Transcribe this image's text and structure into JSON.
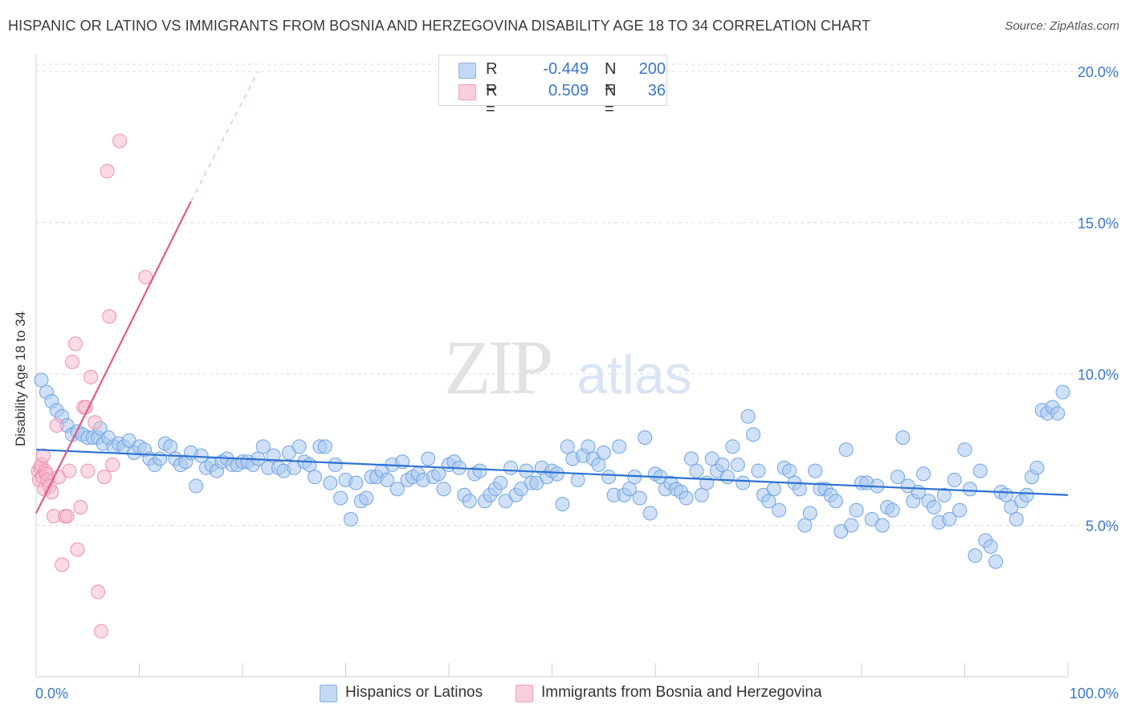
{
  "header": {
    "title": "HISPANIC OR LATINO VS IMMIGRANTS FROM BOSNIA AND HERZEGOVINA DISABILITY AGE 18 TO 34 CORRELATION CHART",
    "source": "Source: ZipAtlas.com"
  },
  "watermark": {
    "zip": "ZIP",
    "atlas": "atlas"
  },
  "legend": {
    "series1": {
      "r_label": "R =",
      "r_value": "-0.449",
      "n_label": "N =",
      "n_value": "200",
      "color": "#a9c8f0"
    },
    "series2": {
      "r_label": "R =",
      "r_value": "0.509",
      "n_label": "N =",
      "n_value": "36",
      "color": "#f6b6c9"
    }
  },
  "bottom_legend": {
    "series1": "Hispanics or Latinos",
    "series2": "Immigrants from Bosnia and Herzegovina"
  },
  "chart_data": {
    "type": "scatter",
    "ylabel": "Disability Age 18 to 34",
    "x_tick_labels": [
      "0.0%",
      "100.0%"
    ],
    "y_tick_labels": [
      "5.0%",
      "10.0%",
      "15.0%",
      "20.0%"
    ],
    "xlim": [
      0,
      100
    ],
    "ylim": [
      0,
      20.5
    ],
    "y_ticks": [
      5,
      10,
      15,
      20
    ],
    "grid": true,
    "colors": {
      "blue": "#6fa3e2",
      "blue_fill": "#a9c8f0",
      "blue_line": "#2d72d2",
      "pink": "#ee8fae",
      "pink_fill": "#f6b6c9",
      "pink_line": "#e05a88"
    },
    "series": [
      {
        "name": "Hispanics or Latinos",
        "trend": {
          "x": [
            0,
            100
          ],
          "y": [
            7.5,
            6.0
          ]
        },
        "points": [
          [
            0.5,
            9.8
          ],
          [
            1,
            9.4
          ],
          [
            1.5,
            9.1
          ],
          [
            2,
            8.8
          ],
          [
            2.5,
            8.6
          ],
          [
            3,
            8.3
          ],
          [
            3.5,
            8.0
          ],
          [
            4,
            8.1
          ],
          [
            4.5,
            8.0
          ],
          [
            5,
            7.9
          ],
          [
            5.5,
            7.9
          ],
          [
            6,
            7.9
          ],
          [
            6.5,
            7.7
          ],
          [
            7,
            7.9
          ],
          [
            7.5,
            7.6
          ],
          [
            8,
            7.7
          ],
          [
            8.5,
            7.6
          ],
          [
            9,
            7.8
          ],
          [
            9.5,
            7.4
          ],
          [
            10,
            7.6
          ],
          [
            10.5,
            7.5
          ],
          [
            11,
            7.2
          ],
          [
            11.5,
            7.0
          ],
          [
            12,
            7.2
          ],
          [
            12.5,
            7.7
          ],
          [
            13,
            7.6
          ],
          [
            13.5,
            7.2
          ],
          [
            14,
            7.0
          ],
          [
            14.5,
            7.1
          ],
          [
            15,
            7.4
          ],
          [
            15.5,
            6.3
          ],
          [
            16,
            7.3
          ],
          [
            16.5,
            6.9
          ],
          [
            17,
            7.0
          ],
          [
            17.5,
            6.8
          ],
          [
            18,
            7.1
          ],
          [
            18.5,
            7.2
          ],
          [
            19,
            7.0
          ],
          [
            19.5,
            7.0
          ],
          [
            20,
            7.1
          ],
          [
            20.5,
            7.1
          ],
          [
            21,
            7.0
          ],
          [
            21.5,
            7.2
          ],
          [
            22,
            7.6
          ],
          [
            22.5,
            6.9
          ],
          [
            23,
            7.3
          ],
          [
            23.5,
            6.9
          ],
          [
            24,
            6.8
          ],
          [
            24.5,
            7.4
          ],
          [
            25,
            6.9
          ],
          [
            25.5,
            7.6
          ],
          [
            26,
            7.1
          ],
          [
            26.5,
            7.0
          ],
          [
            27,
            6.6
          ],
          [
            27.5,
            7.6
          ],
          [
            28,
            7.6
          ],
          [
            28.5,
            6.4
          ],
          [
            29,
            7.0
          ],
          [
            29.5,
            5.9
          ],
          [
            30,
            6.5
          ],
          [
            30.5,
            5.2
          ],
          [
            31,
            6.4
          ],
          [
            31.5,
            5.8
          ],
          [
            32,
            5.9
          ],
          [
            32.5,
            6.6
          ],
          [
            33,
            6.6
          ],
          [
            33.5,
            6.8
          ],
          [
            34,
            6.5
          ],
          [
            34.5,
            7.0
          ],
          [
            35,
            6.2
          ],
          [
            35.5,
            7.1
          ],
          [
            36,
            6.5
          ],
          [
            36.5,
            6.6
          ],
          [
            37,
            6.7
          ],
          [
            37.5,
            6.5
          ],
          [
            38,
            7.2
          ],
          [
            38.5,
            6.6
          ],
          [
            39,
            6.7
          ],
          [
            39.5,
            6.2
          ],
          [
            40,
            7.0
          ],
          [
            40.5,
            7.1
          ],
          [
            41,
            6.9
          ],
          [
            41.5,
            6.0
          ],
          [
            42,
            5.8
          ],
          [
            42.5,
            6.7
          ],
          [
            43,
            6.8
          ],
          [
            43.5,
            5.8
          ],
          [
            44,
            6.0
          ],
          [
            44.5,
            6.2
          ],
          [
            45,
            6.4
          ],
          [
            45.5,
            5.8
          ],
          [
            46,
            6.9
          ],
          [
            46.5,
            6.0
          ],
          [
            47,
            6.2
          ],
          [
            47.5,
            6.8
          ],
          [
            48,
            6.4
          ],
          [
            48.5,
            6.4
          ],
          [
            49,
            6.9
          ],
          [
            49.5,
            6.6
          ],
          [
            50,
            6.8
          ],
          [
            50.5,
            6.7
          ],
          [
            51,
            5.7
          ],
          [
            51.5,
            7.6
          ],
          [
            52,
            7.2
          ],
          [
            52.5,
            6.5
          ],
          [
            53,
            7.3
          ],
          [
            53.5,
            7.6
          ],
          [
            54,
            7.2
          ],
          [
            54.5,
            7.0
          ],
          [
            55,
            7.4
          ],
          [
            55.5,
            6.6
          ],
          [
            56,
            6.0
          ],
          [
            56.5,
            7.6
          ],
          [
            57,
            6.0
          ],
          [
            57.5,
            6.2
          ],
          [
            58,
            6.6
          ],
          [
            58.5,
            5.9
          ],
          [
            59,
            7.9
          ],
          [
            59.5,
            5.4
          ],
          [
            60,
            6.7
          ],
          [
            60.5,
            6.6
          ],
          [
            61,
            6.2
          ],
          [
            61.5,
            6.4
          ],
          [
            62,
            6.2
          ],
          [
            62.5,
            6.1
          ],
          [
            63,
            5.9
          ],
          [
            63.5,
            7.2
          ],
          [
            64,
            6.8
          ],
          [
            64.5,
            6.0
          ],
          [
            65,
            6.4
          ],
          [
            65.5,
            7.2
          ],
          [
            66,
            6.8
          ],
          [
            66.5,
            7.0
          ],
          [
            67,
            6.6
          ],
          [
            67.5,
            7.6
          ],
          [
            68,
            7.0
          ],
          [
            68.5,
            6.4
          ],
          [
            69,
            8.6
          ],
          [
            69.5,
            8.0
          ],
          [
            70,
            6.8
          ],
          [
            70.5,
            6.0
          ],
          [
            71,
            5.8
          ],
          [
            71.5,
            6.2
          ],
          [
            72,
            5.5
          ],
          [
            72.5,
            6.9
          ],
          [
            73,
            6.8
          ],
          [
            73.5,
            6.4
          ],
          [
            74,
            6.2
          ],
          [
            74.5,
            5.0
          ],
          [
            75,
            5.4
          ],
          [
            75.5,
            6.8
          ],
          [
            76,
            6.2
          ],
          [
            76.5,
            6.2
          ],
          [
            77,
            6.0
          ],
          [
            77.5,
            5.8
          ],
          [
            78,
            4.8
          ],
          [
            78.5,
            7.5
          ],
          [
            79,
            5.0
          ],
          [
            79.5,
            5.5
          ],
          [
            80,
            6.4
          ],
          [
            80.5,
            6.4
          ],
          [
            81,
            5.2
          ],
          [
            81.5,
            6.3
          ],
          [
            82,
            5.0
          ],
          [
            82.5,
            5.6
          ],
          [
            83,
            5.5
          ],
          [
            83.5,
            6.6
          ],
          [
            84,
            7.9
          ],
          [
            84.5,
            6.3
          ],
          [
            85,
            5.8
          ],
          [
            85.5,
            6.1
          ],
          [
            86,
            6.7
          ],
          [
            86.5,
            5.8
          ],
          [
            87,
            5.6
          ],
          [
            87.5,
            5.1
          ],
          [
            88,
            6.0
          ],
          [
            88.5,
            5.2
          ],
          [
            89,
            6.5
          ],
          [
            89.5,
            5.5
          ],
          [
            90,
            7.5
          ],
          [
            90.5,
            6.2
          ],
          [
            91,
            4.0
          ],
          [
            91.5,
            6.8
          ],
          [
            92,
            4.5
          ],
          [
            92.5,
            4.3
          ],
          [
            93,
            3.8
          ],
          [
            93.5,
            6.1
          ],
          [
            94,
            6.0
          ],
          [
            94.5,
            5.6
          ],
          [
            95,
            5.2
          ],
          [
            95.5,
            5.8
          ],
          [
            96,
            6.0
          ],
          [
            96.5,
            6.6
          ],
          [
            97,
            6.9
          ],
          [
            97.5,
            8.8
          ],
          [
            98,
            8.7
          ],
          [
            98.5,
            8.9
          ],
          [
            99,
            8.7
          ],
          [
            99.5,
            9.4
          ],
          [
            6.2,
            8.2
          ]
        ]
      },
      {
        "name": "Immigrants from Bosnia and Herzegovina",
        "trend": {
          "x": [
            0,
            15
          ],
          "y": [
            5.4,
            15.7
          ]
        },
        "trend_dashed": {
          "x": [
            15,
            21.5
          ],
          "y": [
            15.7,
            20.0
          ]
        },
        "points": [
          [
            0.2,
            6.8
          ],
          [
            0.3,
            6.5
          ],
          [
            0.4,
            6.9
          ],
          [
            0.5,
            7.0
          ],
          [
            0.6,
            6.6
          ],
          [
            0.7,
            7.3
          ],
          [
            0.8,
            6.2
          ],
          [
            0.9,
            6.8
          ],
          [
            1.0,
            6.7
          ],
          [
            1.1,
            6.5
          ],
          [
            1.3,
            6.3
          ],
          [
            1.5,
            6.1
          ],
          [
            1.7,
            5.3
          ],
          [
            2.0,
            8.3
          ],
          [
            2.2,
            6.6
          ],
          [
            2.5,
            3.7
          ],
          [
            2.8,
            5.3
          ],
          [
            3.0,
            5.3
          ],
          [
            3.2,
            6.8
          ],
          [
            3.5,
            10.4
          ],
          [
            3.8,
            11.0
          ],
          [
            4.0,
            4.2
          ],
          [
            4.3,
            5.6
          ],
          [
            4.6,
            8.9
          ],
          [
            4.8,
            8.9
          ],
          [
            5.0,
            6.8
          ],
          [
            5.3,
            9.9
          ],
          [
            5.7,
            8.4
          ],
          [
            6.0,
            2.8
          ],
          [
            6.3,
            1.5
          ],
          [
            6.6,
            6.6
          ],
          [
            6.9,
            16.7
          ],
          [
            7.1,
            11.9
          ],
          [
            7.4,
            7.0
          ],
          [
            8.1,
            17.7
          ],
          [
            10.6,
            13.2
          ]
        ]
      }
    ]
  }
}
